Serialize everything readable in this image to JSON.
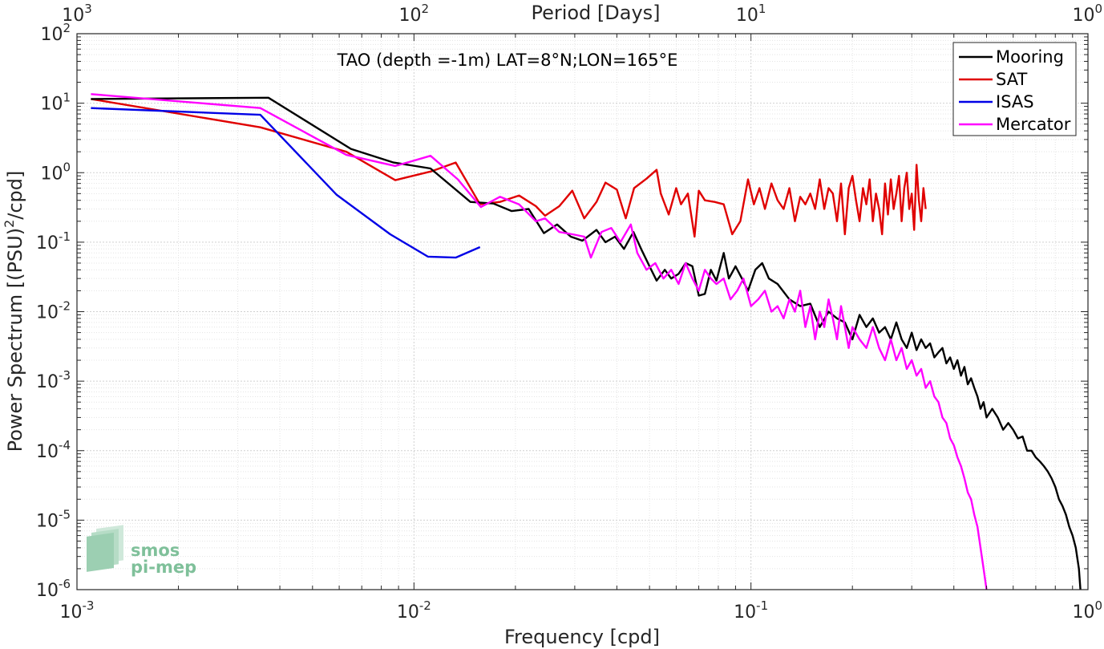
{
  "chart_data": {
    "type": "line",
    "title": "TAO (depth =-1m) LAT=8°N;LON=165°E",
    "xlabel": "Frequency [cpd]",
    "ylabel_main": "Power Spectrum [(PSU)",
    "ylabel_sup": "2",
    "ylabel_tail": "/cpd]",
    "top_axis_label": "Period [Days]",
    "x_scale": "log",
    "y_scale": "log",
    "xlim": [
      0.001,
      1
    ],
    "ylim": [
      1e-06,
      100
    ],
    "grid": true,
    "legend_position": "top-right",
    "x_ticks": [
      {
        "value": 0.001,
        "base": "10",
        "exp": "-3"
      },
      {
        "value": 0.01,
        "base": "10",
        "exp": "-2"
      },
      {
        "value": 0.1,
        "base": "10",
        "exp": "-1"
      },
      {
        "value": 1,
        "base": "10",
        "exp": "0"
      }
    ],
    "top_ticks": [
      {
        "value": 0.001,
        "base": "10",
        "exp": "3"
      },
      {
        "value": 0.01,
        "base": "10",
        "exp": "2"
      },
      {
        "value": 0.1,
        "base": "10",
        "exp": "1"
      },
      {
        "value": 1,
        "base": "10",
        "exp": "0"
      }
    ],
    "y_ticks": [
      {
        "value": 100,
        "base": "10",
        "exp": "2"
      },
      {
        "value": 10,
        "base": "10",
        "exp": "1"
      },
      {
        "value": 1,
        "base": "10",
        "exp": "0"
      },
      {
        "value": 0.1,
        "base": "10",
        "exp": "-1"
      },
      {
        "value": 0.01,
        "base": "10",
        "exp": "-2"
      },
      {
        "value": 0.001,
        "base": "10",
        "exp": "-3"
      },
      {
        "value": 0.0001,
        "base": "10",
        "exp": "-4"
      },
      {
        "value": 1e-05,
        "base": "10",
        "exp": "-5"
      },
      {
        "value": 1e-06,
        "base": "10",
        "exp": "-6"
      }
    ],
    "series": [
      {
        "name": "Mooring",
        "color": "#000000",
        "x": [
          0.0011,
          0.0037,
          0.0065,
          0.0087,
          0.0112,
          0.0147,
          0.0172,
          0.0195,
          0.0219,
          0.0243,
          0.0266,
          0.0292,
          0.0316,
          0.0348,
          0.037,
          0.0395,
          0.042,
          0.0448,
          0.0475,
          0.05,
          0.0525,
          0.0555,
          0.058,
          0.061,
          0.064,
          0.067,
          0.07,
          0.073,
          0.076,
          0.079,
          0.083,
          0.086,
          0.09,
          0.094,
          0.098,
          0.103,
          0.108,
          0.113,
          0.12,
          0.13,
          0.14,
          0.15,
          0.16,
          0.17,
          0.18,
          0.19,
          0.2,
          0.21,
          0.22,
          0.23,
          0.24,
          0.25,
          0.26,
          0.27,
          0.28,
          0.29,
          0.3,
          0.31,
          0.32,
          0.33,
          0.34,
          0.35,
          0.36,
          0.37,
          0.38,
          0.39,
          0.4,
          0.41,
          0.42,
          0.43,
          0.44,
          0.45,
          0.46,
          0.47,
          0.48,
          0.49,
          0.5,
          0.52,
          0.54,
          0.56,
          0.58,
          0.6,
          0.62,
          0.64,
          0.66,
          0.68,
          0.7,
          0.72,
          0.74,
          0.76,
          0.78,
          0.8,
          0.82,
          0.84,
          0.86,
          0.88,
          0.9,
          0.92,
          0.94,
          0.95
        ],
        "y": [
          11.5,
          12,
          2.2,
          1.4,
          1.15,
          0.38,
          0.36,
          0.28,
          0.3,
          0.135,
          0.18,
          0.12,
          0.105,
          0.15,
          0.1,
          0.12,
          0.08,
          0.14,
          0.075,
          0.045,
          0.028,
          0.04,
          0.03,
          0.035,
          0.05,
          0.045,
          0.017,
          0.018,
          0.04,
          0.028,
          0.07,
          0.03,
          0.045,
          0.03,
          0.02,
          0.04,
          0.05,
          0.03,
          0.025,
          0.015,
          0.012,
          0.013,
          0.006,
          0.01,
          0.008,
          0.007,
          0.004,
          0.009,
          0.006,
          0.008,
          0.005,
          0.006,
          0.004,
          0.007,
          0.004,
          0.003,
          0.005,
          0.0028,
          0.004,
          0.003,
          0.0035,
          0.0022,
          0.0026,
          0.003,
          0.0018,
          0.0022,
          0.0015,
          0.002,
          0.0012,
          0.0016,
          0.0009,
          0.0011,
          0.0008,
          0.0006,
          0.0004,
          0.0005,
          0.0003,
          0.0004,
          0.0003,
          0.0002,
          0.00025,
          0.0002,
          0.00015,
          0.00016,
          0.0001,
          0.0001,
          8e-05,
          7e-05,
          6e-05,
          5e-05,
          4e-05,
          3e-05,
          2e-05,
          1.6e-05,
          1.2e-05,
          8e-06,
          6e-06,
          4e-06,
          2e-06,
          1e-06
        ]
      },
      {
        "name": "SAT",
        "color": "#e00000",
        "x": [
          0.0011,
          0.0035,
          0.0063,
          0.0088,
          0.0113,
          0.0133,
          0.0157,
          0.018,
          0.0205,
          0.023,
          0.0245,
          0.027,
          0.0295,
          0.032,
          0.0348,
          0.037,
          0.04,
          0.0425,
          0.045,
          0.049,
          0.0525,
          0.054,
          0.057,
          0.06,
          0.062,
          0.065,
          0.068,
          0.07,
          0.073,
          0.078,
          0.083,
          0.088,
          0.093,
          0.098,
          0.102,
          0.106,
          0.11,
          0.115,
          0.12,
          0.125,
          0.13,
          0.135,
          0.14,
          0.145,
          0.15,
          0.155,
          0.16,
          0.165,
          0.17,
          0.175,
          0.18,
          0.185,
          0.19,
          0.195,
          0.2,
          0.205,
          0.21,
          0.215,
          0.22,
          0.225,
          0.23,
          0.235,
          0.24,
          0.245,
          0.25,
          0.255,
          0.26,
          0.265,
          0.27,
          0.275,
          0.28,
          0.285,
          0.29,
          0.295,
          0.3,
          0.305,
          0.31,
          0.315,
          0.32,
          0.325,
          0.33
        ],
        "y": [
          11.5,
          4.5,
          2,
          0.78,
          1.05,
          1.4,
          0.35,
          0.38,
          0.47,
          0.33,
          0.24,
          0.33,
          0.55,
          0.22,
          0.38,
          0.72,
          0.57,
          0.22,
          0.6,
          0.82,
          1.1,
          0.5,
          0.25,
          0.6,
          0.35,
          0.5,
          0.12,
          0.55,
          0.4,
          0.38,
          0.35,
          0.13,
          0.2,
          0.8,
          0.35,
          0.6,
          0.3,
          0.7,
          0.4,
          0.3,
          0.6,
          0.2,
          0.45,
          0.35,
          0.5,
          0.3,
          0.8,
          0.3,
          0.6,
          0.5,
          0.2,
          0.7,
          0.13,
          0.6,
          0.9,
          0.4,
          0.2,
          0.6,
          0.35,
          0.8,
          0.2,
          0.5,
          0.3,
          0.13,
          0.7,
          0.25,
          0.8,
          0.3,
          0.5,
          0.9,
          0.2,
          0.6,
          1.0,
          0.3,
          0.5,
          0.15,
          1.3,
          0.4,
          0.2,
          0.6,
          0.3
        ]
      },
      {
        "name": "ISAS",
        "color": "#0000e6",
        "x": [
          0.0011,
          0.0035,
          0.0059,
          0.0085,
          0.011,
          0.0133,
          0.0157
        ],
        "y": [
          8.5,
          6.8,
          0.48,
          0.13,
          0.062,
          0.06,
          0.085
        ]
      },
      {
        "name": "Mercator",
        "color": "#ff00ff",
        "x": [
          0.0011,
          0.0035,
          0.0063,
          0.0088,
          0.0112,
          0.0135,
          0.0158,
          0.018,
          0.0205,
          0.023,
          0.0245,
          0.027,
          0.0295,
          0.032,
          0.0335,
          0.036,
          0.0385,
          0.041,
          0.044,
          0.046,
          0.049,
          0.052,
          0.055,
          0.058,
          0.061,
          0.064,
          0.067,
          0.07,
          0.073,
          0.076,
          0.079,
          0.083,
          0.087,
          0.091,
          0.095,
          0.1,
          0.105,
          0.11,
          0.115,
          0.12,
          0.125,
          0.13,
          0.135,
          0.14,
          0.145,
          0.15,
          0.155,
          0.16,
          0.165,
          0.17,
          0.175,
          0.18,
          0.185,
          0.19,
          0.195,
          0.2,
          0.21,
          0.22,
          0.23,
          0.24,
          0.25,
          0.26,
          0.27,
          0.28,
          0.29,
          0.3,
          0.31,
          0.32,
          0.33,
          0.34,
          0.35,
          0.36,
          0.37,
          0.38,
          0.39,
          0.4,
          0.41,
          0.42,
          0.43,
          0.44,
          0.45,
          0.46,
          0.47,
          0.48,
          0.49,
          0.5
        ],
        "y": [
          13.5,
          8.5,
          1.8,
          1.25,
          1.75,
          0.8,
          0.32,
          0.45,
          0.35,
          0.2,
          0.22,
          0.14,
          0.13,
          0.12,
          0.06,
          0.14,
          0.16,
          0.1,
          0.18,
          0.07,
          0.04,
          0.05,
          0.03,
          0.04,
          0.025,
          0.05,
          0.03,
          0.02,
          0.04,
          0.03,
          0.025,
          0.03,
          0.015,
          0.02,
          0.03,
          0.012,
          0.015,
          0.02,
          0.01,
          0.012,
          0.008,
          0.015,
          0.01,
          0.02,
          0.006,
          0.012,
          0.004,
          0.01,
          0.006,
          0.015,
          0.008,
          0.004,
          0.012,
          0.006,
          0.003,
          0.006,
          0.004,
          0.003,
          0.006,
          0.003,
          0.002,
          0.004,
          0.002,
          0.003,
          0.0015,
          0.002,
          0.0012,
          0.0015,
          0.0008,
          0.001,
          0.0006,
          0.0005,
          0.0003,
          0.00025,
          0.00015,
          0.00012,
          8e-05,
          6e-05,
          4e-05,
          2.5e-05,
          2e-05,
          1.2e-05,
          8e-06,
          4e-06,
          2e-06,
          1e-06
        ]
      }
    ]
  },
  "logo": {
    "line1": "smos",
    "line2": "pi-mep"
  }
}
